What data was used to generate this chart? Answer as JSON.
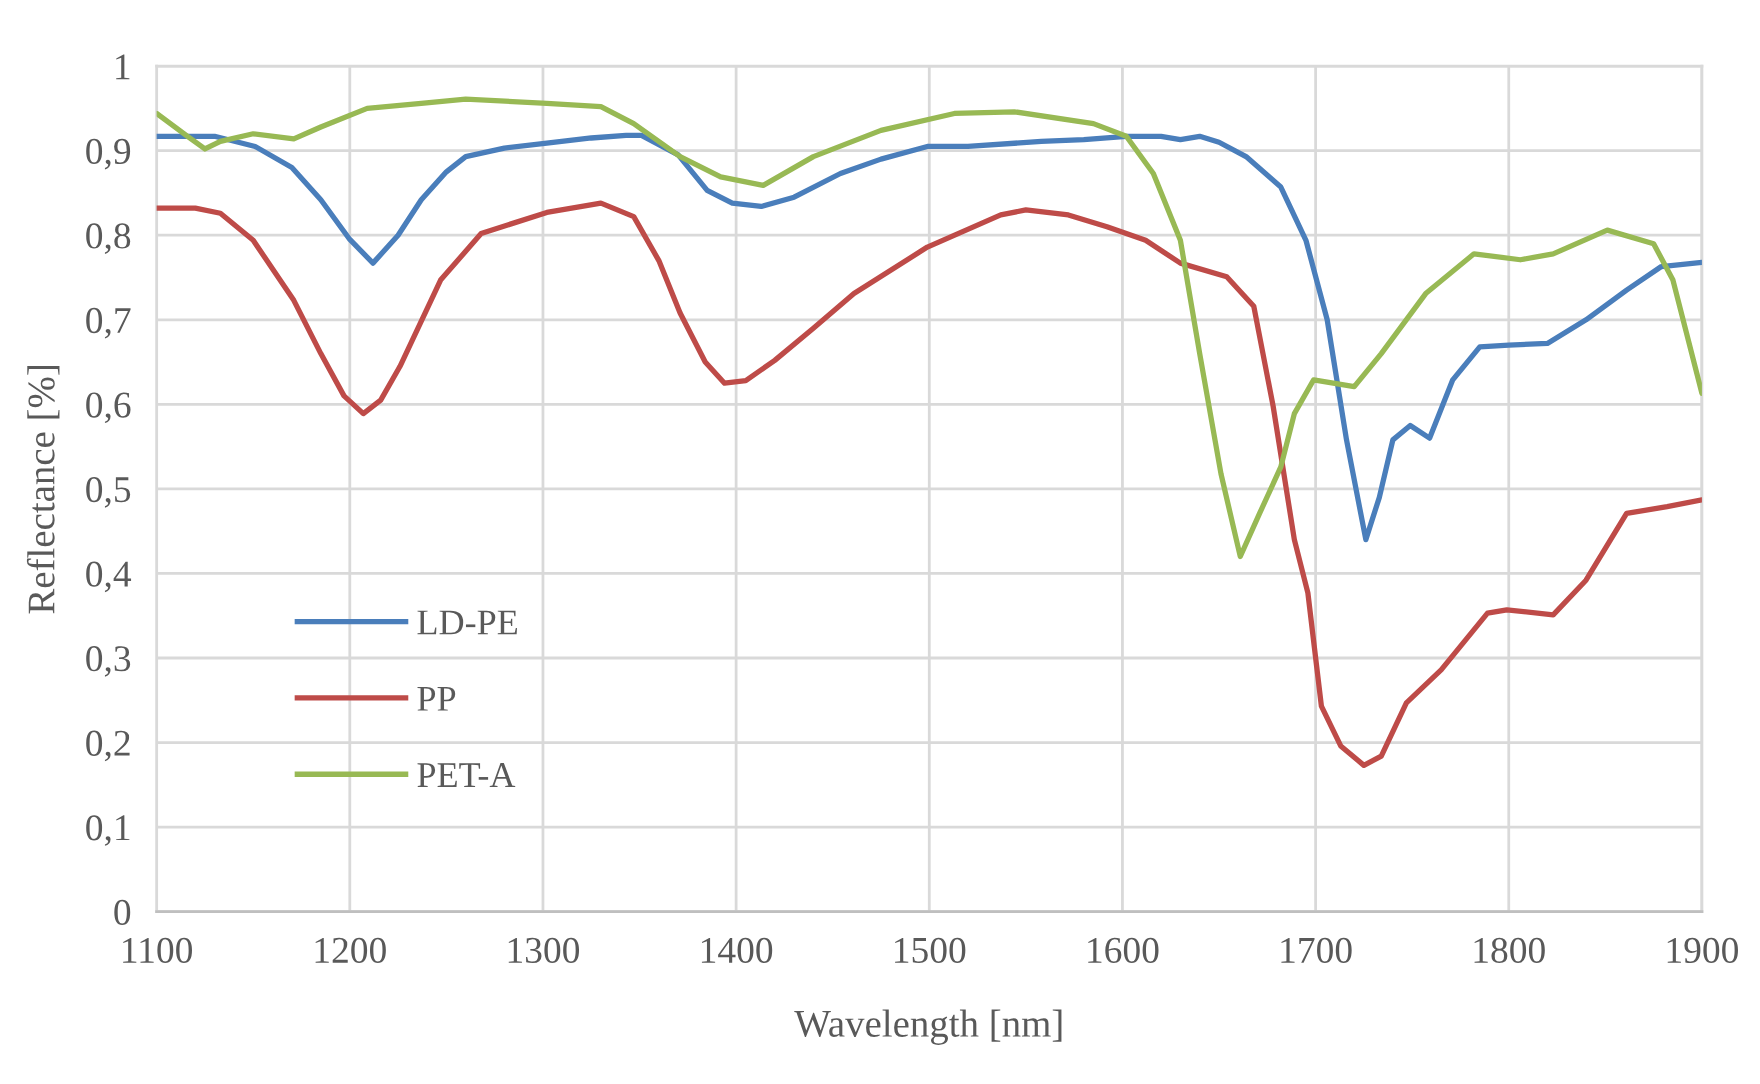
{
  "chart_data": {
    "type": "line",
    "xlabel": "Wavelength [nm]",
    "ylabel": "Reflectance [%]",
    "xlim": [
      1100,
      1900
    ],
    "xticks": [
      1100,
      1200,
      1300,
      1400,
      1500,
      1600,
      1700,
      1800,
      1900
    ],
    "ylim": [
      0,
      1
    ],
    "yticks": [
      0,
      {
        "value": 0.1,
        "label": "0,1"
      },
      {
        "value": 0.2,
        "label": "0,2"
      },
      {
        "value": 0.3,
        "label": "0,3"
      },
      {
        "value": 0.4,
        "label": "0,4"
      },
      {
        "value": 0.5,
        "label": "0,5"
      },
      {
        "value": 0.6,
        "label": "0,6"
      },
      {
        "value": 0.7,
        "label": "0,7"
      },
      {
        "value": 0.8,
        "label": "0,8"
      },
      {
        "value": 0.9,
        "label": "0,9"
      },
      1
    ],
    "grid": true,
    "legend": "lower left",
    "marker": "none",
    "line_style": "solid",
    "series": [
      {
        "name": "LD-PE",
        "color": "#4a7ebb",
        "x": [
          1100,
          1130,
          1151,
          1170,
          1185,
          1200,
          1212,
          1225,
          1237,
          1250,
          1260,
          1280,
          1302,
          1325,
          1343,
          1351,
          1370,
          1385,
          1398,
          1413,
          1430,
          1454,
          1475,
          1499,
          1520,
          1558,
          1580,
          1602,
          1620,
          1630,
          1640,
          1650,
          1664,
          1682,
          1695,
          1706,
          1716,
          1726,
          1733,
          1740,
          1749,
          1759,
          1771,
          1785,
          1800,
          1820,
          1840,
          1861,
          1879,
          1900
        ],
        "values": [
          0.917,
          0.917,
          0.905,
          0.88,
          0.842,
          0.795,
          0.767,
          0.8,
          0.842,
          0.875,
          0.893,
          0.903,
          0.909,
          0.915,
          0.918,
          0.918,
          0.895,
          0.853,
          0.838,
          0.834,
          0.845,
          0.873,
          0.89,
          0.905,
          0.905,
          0.911,
          0.913,
          0.917,
          0.917,
          0.913,
          0.917,
          0.91,
          0.893,
          0.857,
          0.794,
          0.7,
          0.558,
          0.44,
          0.49,
          0.558,
          0.575,
          0.56,
          0.629,
          0.668,
          0.67,
          0.672,
          0.7,
          0.735,
          0.763,
          0.768
        ]
      },
      {
        "name": "PP",
        "color": "#be4b48",
        "x": [
          1100,
          1120,
          1133,
          1150,
          1171,
          1185,
          1197,
          1207,
          1216,
          1226,
          1247,
          1268,
          1302,
          1330,
          1347,
          1360,
          1371,
          1384,
          1394,
          1405,
          1420,
          1440,
          1461,
          1499,
          1537,
          1550,
          1572,
          1592,
          1612,
          1630,
          1654,
          1668,
          1678,
          1689,
          1696,
          1703,
          1713,
          1725,
          1734,
          1747,
          1765,
          1789,
          1799,
          1823,
          1840,
          1861,
          1882,
          1900
        ],
        "values": [
          0.832,
          0.832,
          0.826,
          0.794,
          0.723,
          0.66,
          0.61,
          0.589,
          0.605,
          0.645,
          0.747,
          0.802,
          0.827,
          0.838,
          0.822,
          0.77,
          0.708,
          0.65,
          0.625,
          0.628,
          0.652,
          0.69,
          0.731,
          0.786,
          0.824,
          0.83,
          0.824,
          0.81,
          0.794,
          0.767,
          0.751,
          0.716,
          0.598,
          0.44,
          0.377,
          0.243,
          0.196,
          0.173,
          0.184,
          0.247,
          0.286,
          0.353,
          0.357,
          0.351,
          0.392,
          0.471,
          0.479,
          0.487
        ]
      },
      {
        "name": "PET-A",
        "color": "#98b954",
        "x": [
          1100,
          1116,
          1125,
          1133,
          1150,
          1171,
          1185,
          1209,
          1237,
          1260,
          1302,
          1330,
          1347,
          1371,
          1392,
          1414,
          1440,
          1475,
          1513,
          1544,
          1585,
          1602,
          1616,
          1630,
          1640,
          1651,
          1661,
          1671,
          1682,
          1689,
          1699,
          1720,
          1734,
          1757,
          1782,
          1806,
          1823,
          1851,
          1875,
          1885,
          1900
        ],
        "values": [
          0.944,
          0.917,
          0.902,
          0.911,
          0.92,
          0.914,
          0.928,
          0.95,
          0.956,
          0.961,
          0.956,
          0.952,
          0.932,
          0.893,
          0.869,
          0.859,
          0.893,
          0.924,
          0.944,
          0.946,
          0.932,
          0.917,
          0.873,
          0.794,
          0.66,
          0.518,
          0.42,
          0.471,
          0.526,
          0.589,
          0.629,
          0.621,
          0.66,
          0.731,
          0.778,
          0.771,
          0.778,
          0.806,
          0.79,
          0.747,
          0.613
        ]
      }
    ]
  }
}
